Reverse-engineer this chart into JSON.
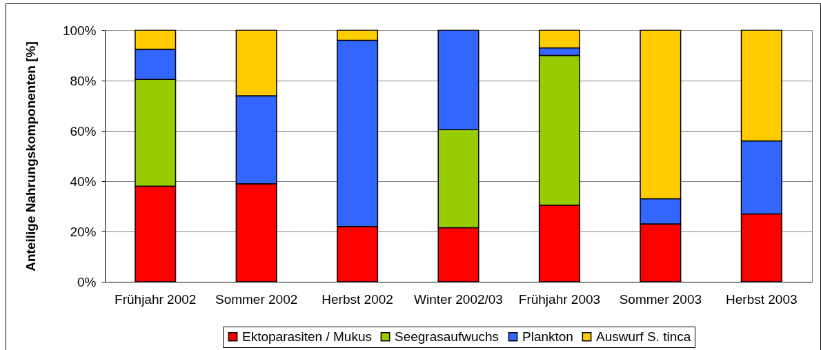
{
  "chart_data": {
    "type": "bar",
    "stacked": true,
    "ylabel": "Anteilige Nahrungskomponenten [%]",
    "categories": [
      "Frühjahr 2002",
      "Sommer 2002",
      "Herbst 2002",
      "Winter 2002/03",
      "Frühjahr 2003",
      "Sommer 2003",
      "Herbst 2003"
    ],
    "series": [
      {
        "name": "Ektoparasiten / Mukus",
        "color": "#ff0000",
        "values": [
          38,
          39,
          22,
          21.5,
          30.5,
          23,
          27
        ]
      },
      {
        "name": "Seegrasaufwuchs",
        "color": "#99cc00",
        "values": [
          42.5,
          null,
          null,
          39,
          59.5,
          null,
          null
        ]
      },
      {
        "name": "Plankton",
        "color": "#3366ff",
        "values": [
          12,
          35,
          74,
          39.5,
          3,
          10,
          29
        ]
      },
      {
        "name": "Auswurf S. tinca",
        "color": "#ffcc00",
        "values": [
          7.5,
          26,
          4,
          null,
          7,
          67,
          44
        ]
      }
    ],
    "ylim": [
      0,
      100
    ],
    "yticks": [
      {
        "value": 0,
        "label": "0%"
      },
      {
        "value": 20,
        "label": "20%"
      },
      {
        "value": 40,
        "label": "40%"
      },
      {
        "value": 60,
        "label": "60%"
      },
      {
        "value": 80,
        "label": "80%"
      },
      {
        "value": 100,
        "label": "100%"
      }
    ],
    "grid": "y",
    "legend": "bottom"
  }
}
